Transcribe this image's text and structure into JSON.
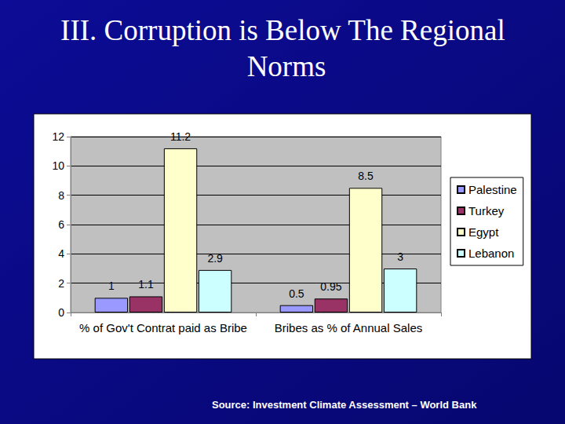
{
  "chart_data": {
    "type": "bar",
    "title": "III. Corruption is Below The Regional Norms",
    "annotations": [
      "Source: Investment Climate Assessment – World Bank"
    ],
    "categories": [
      "% of Gov't Contrat paid as Bribe",
      "Bribes as % of Annual Sales"
    ],
    "series": [
      {
        "name": "Palestine",
        "color": "#9999ff",
        "values": [
          1,
          0.5
        ]
      },
      {
        "name": "Turkey",
        "color": "#993366",
        "values": [
          1.1,
          0.95
        ]
      },
      {
        "name": "Egypt",
        "color": "#ffffcc",
        "values": [
          11.2,
          8.5
        ]
      },
      {
        "name": "Lebanon",
        "color": "#ccffff",
        "values": [
          2.9,
          3
        ]
      }
    ],
    "ylim": [
      0,
      12
    ],
    "yticks": [
      0,
      2,
      4,
      6,
      8,
      10,
      12
    ],
    "grid": true,
    "legend": "right",
    "data_labels": true
  }
}
